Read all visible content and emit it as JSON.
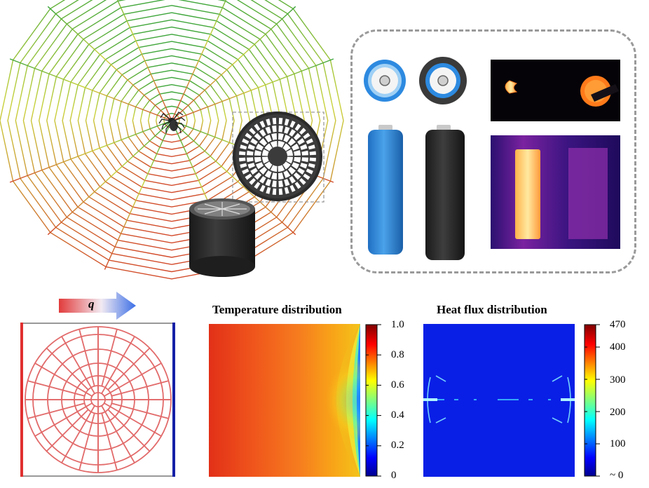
{
  "flux_arrow": {
    "label": "q"
  },
  "colors": {
    "web_inner": "#6dbb2a",
    "web_outer": "#d14b2a",
    "battery_blue": "#2d7fd0",
    "battery_black": "#2a2a2a",
    "heat_source": "#e03030",
    "heat_sink": "#1520a6"
  },
  "temperature_plot": {
    "title": "Temperature distribution",
    "colorbar_ticks": [
      "1.0",
      "0.8",
      "0.6",
      "0.4",
      "0.2",
      "0"
    ]
  },
  "heat_flux_plot": {
    "title": "Heat flux distribution",
    "colorbar_ticks": [
      "470",
      "400",
      "300",
      "200",
      "100",
      "~ 0"
    ]
  },
  "icons": [
    "spider-icon",
    "web-disc-icon",
    "cylinder-device-icon",
    "battery-icon",
    "thermal-image"
  ]
}
